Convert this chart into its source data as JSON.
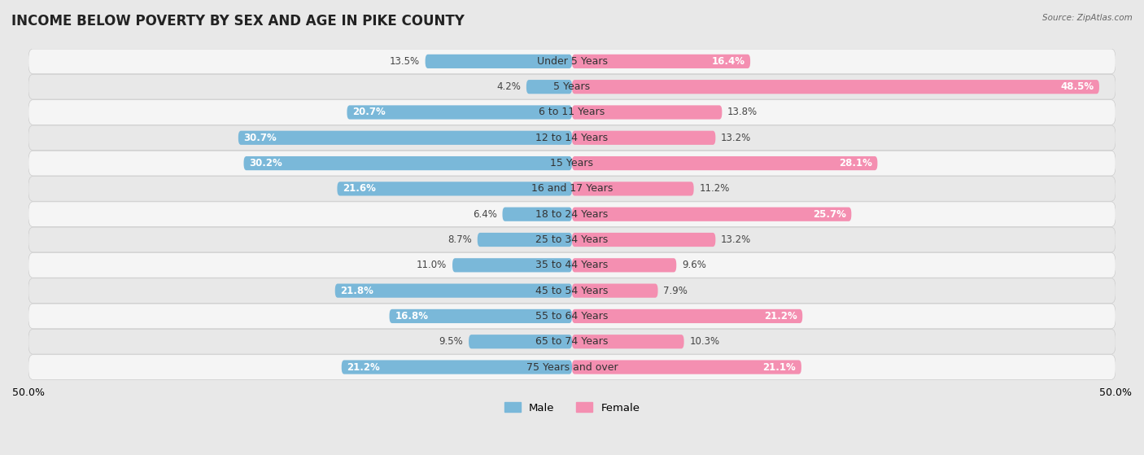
{
  "title": "INCOME BELOW POVERTY BY SEX AND AGE IN PIKE COUNTY",
  "source": "Source: ZipAtlas.com",
  "categories": [
    "Under 5 Years",
    "5 Years",
    "6 to 11 Years",
    "12 to 14 Years",
    "15 Years",
    "16 and 17 Years",
    "18 to 24 Years",
    "25 to 34 Years",
    "35 to 44 Years",
    "45 to 54 Years",
    "55 to 64 Years",
    "65 to 74 Years",
    "75 Years and over"
  ],
  "male": [
    13.5,
    4.2,
    20.7,
    30.7,
    30.2,
    21.6,
    6.4,
    8.7,
    11.0,
    21.8,
    16.8,
    9.5,
    21.2
  ],
  "female": [
    16.4,
    48.5,
    13.8,
    13.2,
    28.1,
    11.2,
    25.7,
    13.2,
    9.6,
    7.9,
    21.2,
    10.3,
    21.1
  ],
  "male_color": "#7ab8d9",
  "female_color": "#f48fb1",
  "male_label": "Male",
  "female_label": "Female",
  "axis_max": 50.0,
  "bg_color": "#e8e8e8",
  "row_bg_light": "#f5f5f5",
  "row_bg_dark": "#e8e8e8",
  "row_border_color": "#cccccc",
  "title_fontsize": 12,
  "label_fontsize": 9,
  "value_fontsize": 8.5,
  "bar_height": 0.55
}
